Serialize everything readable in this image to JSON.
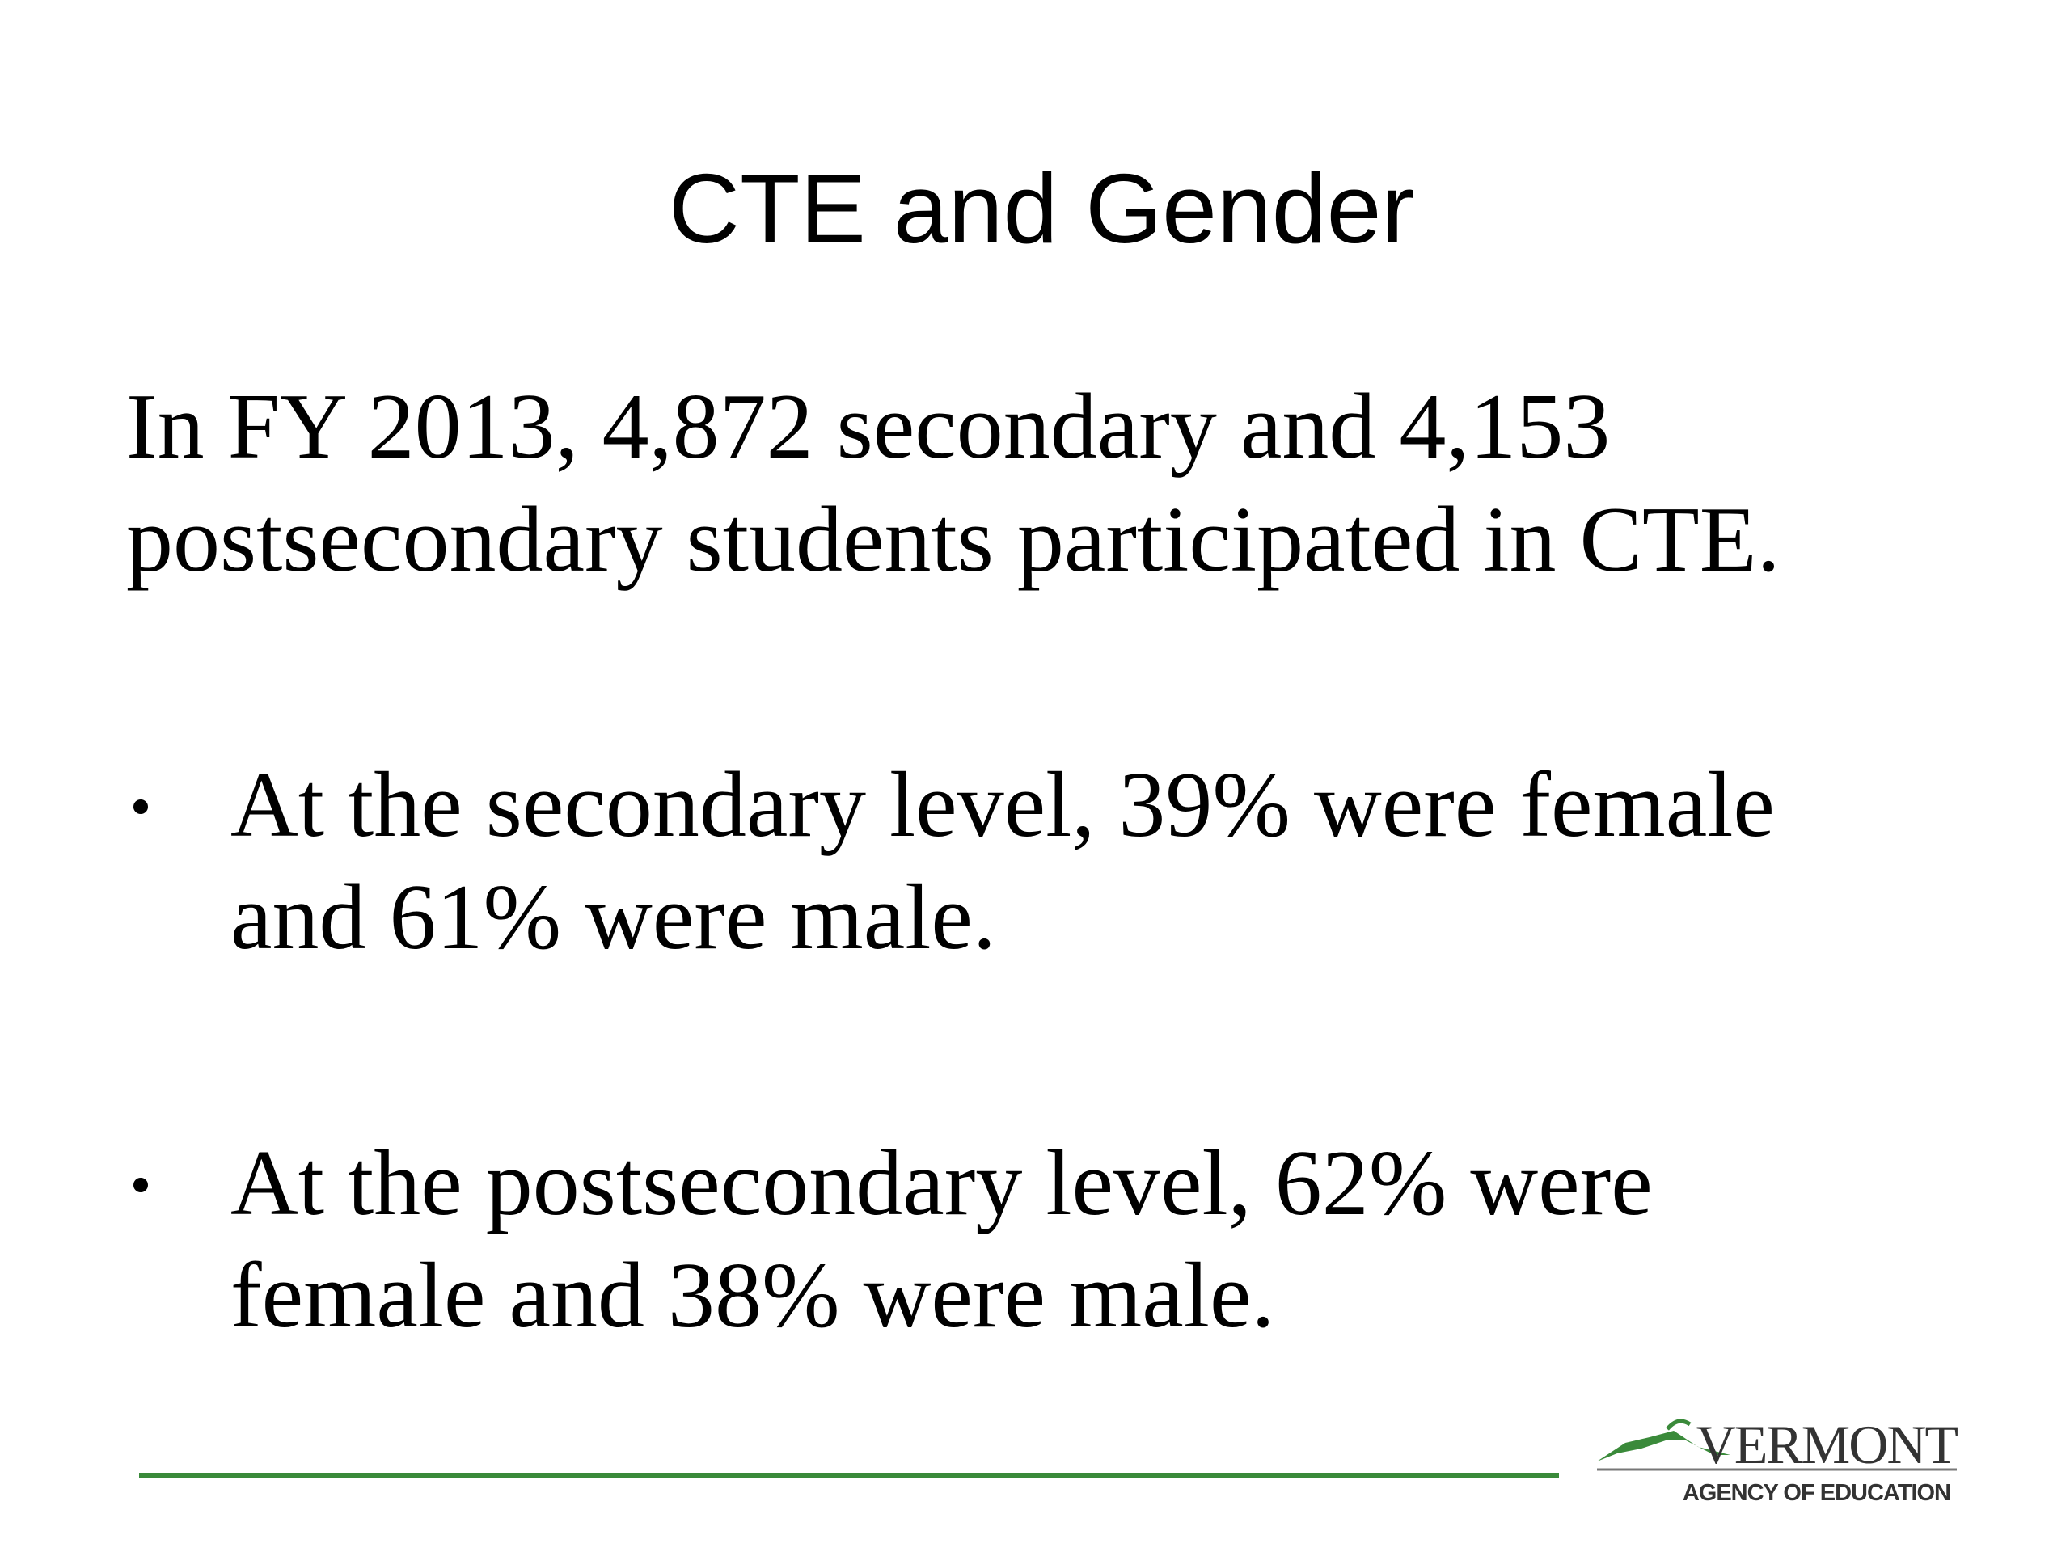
{
  "slide": {
    "title": "CTE and Gender",
    "intro": [
      "In FY 2013, 4,872 secondary and 4,153",
      "postsecondary students participated in CTE."
    ],
    "bullets": [
      [
        "At the secondary level, 39% were female",
        "and 61% were male."
      ],
      [
        "At the postsecondary level, 62% were",
        "female and 38% were male."
      ]
    ],
    "logo": {
      "name": "VERMONT",
      "subtitle": "AGENCY OF EDUCATION"
    }
  }
}
